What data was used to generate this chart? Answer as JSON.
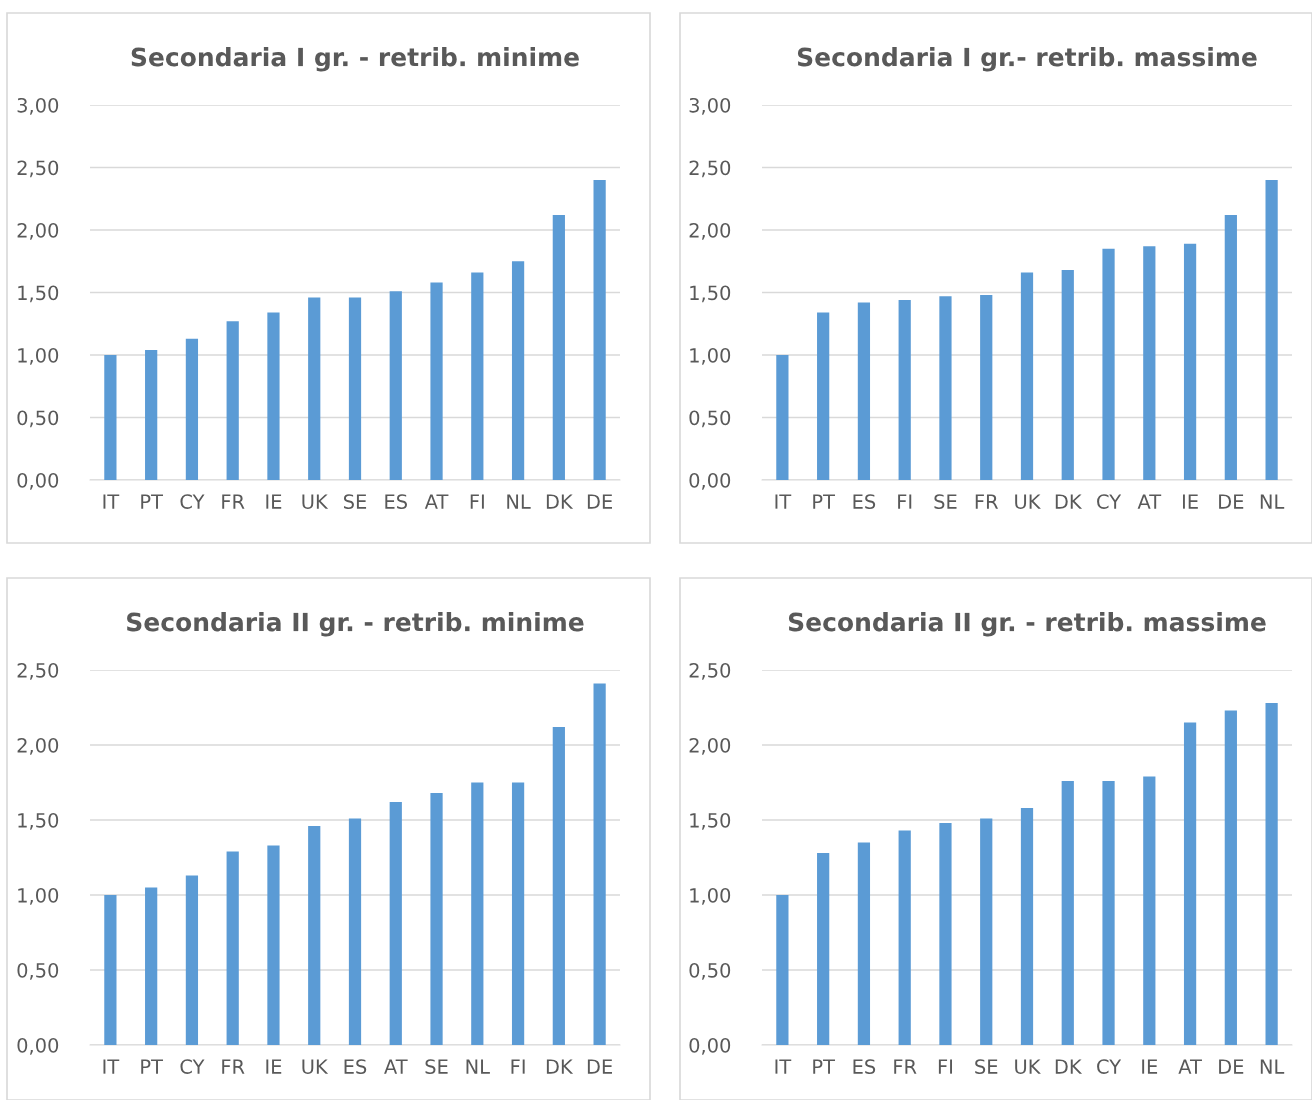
{
  "chart_data": [
    {
      "type": "bar",
      "title": "Secondaria I gr. - retrib. minime",
      "categories": [
        "IT",
        "PT",
        "CY",
        "FR",
        "IE",
        "UK",
        "SE",
        "ES",
        "AT",
        "FI",
        "NL",
        "DK",
        "DE"
      ],
      "values": [
        1.0,
        1.04,
        1.13,
        1.27,
        1.34,
        1.46,
        1.46,
        1.51,
        1.58,
        1.66,
        1.75,
        2.12,
        2.4
      ],
      "color": "#5b9bd5",
      "ylim": [
        0,
        3
      ],
      "yticks": [
        {
          "value": 0,
          "label": "0,00"
        },
        {
          "value": 0.5,
          "label": "0,50"
        },
        {
          "value": 1,
          "label": "1,00"
        },
        {
          "value": 1.5,
          "label": "1,50"
        },
        {
          "value": 2,
          "label": "2,00"
        },
        {
          "value": 2.5,
          "label": "2,50"
        },
        {
          "value": 3,
          "label": "3,00"
        }
      ],
      "grid": "y"
    },
    {
      "type": "bar",
      "title": "Secondaria I gr.- retrib. massime",
      "categories": [
        "IT",
        "PT",
        "ES",
        "FI",
        "SE",
        "FR",
        "UK",
        "DK",
        "CY",
        "AT",
        "IE",
        "DE",
        "NL"
      ],
      "values": [
        1.0,
        1.34,
        1.42,
        1.44,
        1.47,
        1.48,
        1.66,
        1.68,
        1.85,
        1.87,
        1.89,
        2.12,
        2.4
      ],
      "color": "#5b9bd5",
      "ylim": [
        0,
        3
      ],
      "yticks": [
        {
          "value": 0,
          "label": "0,00"
        },
        {
          "value": 0.5,
          "label": "0,50"
        },
        {
          "value": 1,
          "label": "1,00"
        },
        {
          "value": 1.5,
          "label": "1,50"
        },
        {
          "value": 2,
          "label": "2,00"
        },
        {
          "value": 2.5,
          "label": "2,50"
        },
        {
          "value": 3,
          "label": "3,00"
        }
      ],
      "grid": "y"
    },
    {
      "type": "bar",
      "title": "Secondaria II gr. - retrib. minime",
      "categories": [
        "IT",
        "PT",
        "CY",
        "FR",
        "IE",
        "UK",
        "ES",
        "AT",
        "SE",
        "NL",
        "FI",
        "DK",
        "DE"
      ],
      "values": [
        1.0,
        1.05,
        1.13,
        1.29,
        1.33,
        1.46,
        1.51,
        1.62,
        1.68,
        1.75,
        1.75,
        2.12,
        2.41
      ],
      "color": "#5b9bd5",
      "ylim": [
        0,
        2.5
      ],
      "yticks": [
        {
          "value": 0,
          "label": "0,00"
        },
        {
          "value": 0.5,
          "label": "0,50"
        },
        {
          "value": 1,
          "label": "1,00"
        },
        {
          "value": 1.5,
          "label": "1,50"
        },
        {
          "value": 2,
          "label": "2,00"
        },
        {
          "value": 2.5,
          "label": "2,50"
        }
      ],
      "grid": "y"
    },
    {
      "type": "bar",
      "title": "Secondaria II gr. - retrib. massime",
      "categories": [
        "IT",
        "PT",
        "ES",
        "FR",
        "FI",
        "SE",
        "UK",
        "DK",
        "CY",
        "IE",
        "AT",
        "DE",
        "NL"
      ],
      "values": [
        1.0,
        1.28,
        1.35,
        1.43,
        1.48,
        1.51,
        1.58,
        1.76,
        1.76,
        1.79,
        2.15,
        2.23,
        2.28
      ],
      "color": "#5b9bd5",
      "ylim": [
        0,
        2.5
      ],
      "yticks": [
        {
          "value": 0,
          "label": "0,00"
        },
        {
          "value": 0.5,
          "label": "0,50"
        },
        {
          "value": 1,
          "label": "1,00"
        },
        {
          "value": 1.5,
          "label": "1,50"
        },
        {
          "value": 2,
          "label": "2,00"
        },
        {
          "value": 2.5,
          "label": "2,50"
        }
      ],
      "grid": "y"
    }
  ]
}
